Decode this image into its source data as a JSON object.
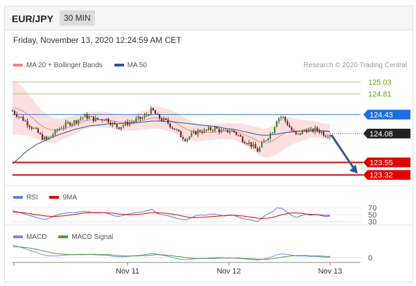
{
  "header": {
    "symbol": "EUR/JPY",
    "timeframe": "30 MIN"
  },
  "timestamp": "Friday, November 13, 2020 12:24:59 AM CET",
  "legend": {
    "bollinger": {
      "label": "MA 20 + Bollinger Bands",
      "color": "#f08080"
    },
    "ma50": {
      "label": "MA 50",
      "color": "#2f5597"
    }
  },
  "copyright": "Research © 2020 Trading Central",
  "rsi_panel": {
    "rsi": {
      "label": "RSI",
      "color": "#5a7fd6"
    },
    "ma9": {
      "label": "9MA",
      "color": "#e00000"
    },
    "levels": [
      "70",
      "50",
      "30"
    ]
  },
  "macd_panel": {
    "macd": {
      "label": "MACD",
      "color": "#6b8fe0"
    },
    "signal": {
      "label": "MACD Signal",
      "color": "#4aa02c"
    },
    "zero_label": "0"
  },
  "x_axis": [
    "Nov 11",
    "Nov 12",
    "Nov 13"
  ],
  "chart_data": {
    "type": "candlestick",
    "ylim": [
      123.2,
      125.2
    ],
    "resistance_levels": [
      {
        "value": 125.03,
        "label": "125.03",
        "color": "#8db84a"
      },
      {
        "value": 124.81,
        "label": "124.81",
        "color": "#8db84a"
      },
      {
        "value": 124.43,
        "label": "124.43",
        "color": "#1f6fe0"
      }
    ],
    "current_price": {
      "value": 124.08,
      "label": "124.08",
      "color": "#222222"
    },
    "support_levels": [
      {
        "value": 123.55,
        "label": "123.55",
        "color": "#e00000"
      },
      {
        "value": 123.32,
        "label": "123.32",
        "color": "#e00000"
      }
    ],
    "close_path": [
      124.5,
      124.42,
      124.36,
      124.28,
      124.2,
      124.12,
      124.02,
      123.96,
      124.04,
      124.12,
      124.2,
      124.24,
      124.28,
      124.3,
      124.36,
      124.4,
      124.38,
      124.34,
      124.34,
      124.36,
      124.32,
      124.24,
      124.2,
      124.24,
      124.28,
      124.3,
      124.34,
      124.36,
      124.44,
      124.52,
      124.4,
      124.34,
      124.3,
      124.22,
      124.14,
      124.04,
      123.98,
      124.04,
      124.1,
      124.14,
      124.12,
      124.16,
      124.18,
      124.14,
      124.1,
      124.14,
      124.12,
      124.04,
      123.96,
      123.92,
      123.84,
      123.76,
      123.9,
      124.02,
      124.12,
      124.36,
      124.4,
      124.28,
      124.14,
      124.04,
      124.1,
      124.16,
      124.12,
      124.16,
      124.12,
      124.06,
      124.08
    ],
    "ma20": [
      124.56,
      124.54,
      124.5,
      124.45,
      124.38,
      124.3,
      124.23,
      124.18,
      124.15,
      124.14,
      124.15,
      124.18,
      124.21,
      124.25,
      124.28,
      124.31,
      124.33,
      124.34,
      124.34,
      124.34,
      124.33,
      124.31,
      124.29,
      124.28,
      124.28,
      124.29,
      124.3,
      124.32,
      124.34,
      124.37,
      124.37,
      124.36,
      124.34,
      124.31,
      124.27,
      124.22,
      124.17,
      124.13,
      124.11,
      124.1,
      124.1,
      124.1,
      124.11,
      124.12,
      124.12,
      124.12,
      124.12,
      124.1,
      124.07,
      124.03,
      123.99,
      123.94,
      123.91,
      123.91,
      123.94,
      124.0,
      124.06,
      124.1,
      124.12,
      124.13,
      124.14,
      124.15,
      124.16,
      124.16,
      124.14,
      124.12,
      124.11
    ],
    "bb_width": [
      0.5,
      0.48,
      0.45,
      0.4,
      0.36,
      0.32,
      0.28,
      0.26,
      0.24,
      0.22,
      0.2,
      0.19,
      0.18,
      0.17,
      0.16,
      0.15,
      0.15,
      0.14,
      0.14,
      0.14,
      0.14,
      0.14,
      0.15,
      0.15,
      0.15,
      0.15,
      0.16,
      0.17,
      0.18,
      0.2,
      0.2,
      0.2,
      0.2,
      0.2,
      0.2,
      0.2,
      0.19,
      0.18,
      0.17,
      0.16,
      0.15,
      0.14,
      0.14,
      0.14,
      0.14,
      0.15,
      0.15,
      0.17,
      0.19,
      0.21,
      0.23,
      0.25,
      0.26,
      0.27,
      0.28,
      0.3,
      0.3,
      0.28,
      0.25,
      0.22,
      0.2,
      0.18,
      0.16,
      0.15,
      0.14,
      0.14,
      0.14
    ],
    "ma50": [
      123.52,
      123.6,
      123.68,
      123.76,
      123.82,
      123.88,
      123.92,
      123.96,
      124.0,
      124.04,
      124.07,
      124.1,
      124.13,
      124.16,
      124.18,
      124.2,
      124.22,
      124.23,
      124.24,
      124.25,
      124.26,
      124.26,
      124.26,
      124.27,
      124.27,
      124.28,
      124.28,
      124.29,
      124.3,
      124.31,
      124.31,
      124.31,
      124.3,
      124.3,
      124.29,
      124.28,
      124.27,
      124.26,
      124.25,
      124.24,
      124.23,
      124.22,
      124.21,
      124.2,
      124.18,
      124.17,
      124.16,
      124.14,
      124.12,
      124.1,
      124.08,
      124.06,
      124.05,
      124.05,
      124.06,
      124.07,
      124.09,
      124.1,
      124.11,
      124.12,
      124.12,
      124.13,
      124.13,
      124.13,
      124.13,
      124.13,
      124.12
    ],
    "forecast_arrow": {
      "from": 124.08,
      "to": 123.32
    },
    "rsi": [
      62,
      58,
      54,
      50,
      46,
      42,
      38,
      36,
      42,
      48,
      52,
      54,
      56,
      56,
      58,
      60,
      58,
      55,
      55,
      56,
      53,
      47,
      45,
      48,
      52,
      54,
      57,
      58,
      62,
      66,
      54,
      50,
      48,
      44,
      40,
      37,
      35,
      40,
      46,
      49,
      48,
      51,
      52,
      49,
      46,
      49,
      48,
      43,
      38,
      36,
      33,
      30,
      42,
      52,
      58,
      70,
      68,
      58,
      48,
      42,
      47,
      52,
      48,
      51,
      48,
      44,
      46
    ],
    "rsi_ma9": [
      58,
      57,
      56,
      54,
      52,
      50,
      48,
      46,
      45,
      45,
      46,
      47,
      49,
      51,
      53,
      55,
      56,
      56,
      56,
      56,
      55,
      54,
      52,
      51,
      50,
      50,
      51,
      52,
      54,
      56,
      56,
      55,
      54,
      52,
      50,
      47,
      44,
      42,
      41,
      42,
      43,
      44,
      45,
      46,
      47,
      48,
      48,
      47,
      46,
      44,
      42,
      40,
      39,
      40,
      42,
      46,
      50,
      53,
      55,
      55,
      54,
      52,
      51,
      50,
      49,
      48,
      48
    ],
    "macd": [
      0.3,
      0.27,
      0.24,
      0.2,
      0.16,
      0.12,
      0.08,
      0.05,
      0.04,
      0.04,
      0.05,
      0.06,
      0.07,
      0.07,
      0.08,
      0.08,
      0.08,
      0.07,
      0.06,
      0.06,
      0.05,
      0.03,
      0.02,
      0.02,
      0.03,
      0.04,
      0.05,
      0.06,
      0.08,
      0.1,
      0.08,
      0.06,
      0.04,
      0.01,
      -0.02,
      -0.04,
      -0.05,
      -0.04,
      -0.03,
      -0.02,
      -0.02,
      -0.01,
      0.0,
      0.0,
      -0.01,
      -0.01,
      -0.01,
      -0.02,
      -0.03,
      -0.04,
      -0.05,
      -0.06,
      -0.04,
      -0.01,
      0.02,
      0.07,
      0.09,
      0.08,
      0.06,
      0.04,
      0.04,
      0.04,
      0.03,
      0.03,
      0.02,
      0.01,
      0.01
    ],
    "macd_signal": [
      0.26,
      0.26,
      0.25,
      0.24,
      0.22,
      0.2,
      0.17,
      0.15,
      0.12,
      0.1,
      0.09,
      0.08,
      0.07,
      0.07,
      0.07,
      0.07,
      0.08,
      0.08,
      0.07,
      0.07,
      0.07,
      0.06,
      0.05,
      0.04,
      0.04,
      0.04,
      0.04,
      0.05,
      0.05,
      0.06,
      0.07,
      0.07,
      0.06,
      0.05,
      0.03,
      0.02,
      0.0,
      -0.01,
      -0.02,
      -0.02,
      -0.02,
      -0.02,
      -0.02,
      -0.01,
      -0.01,
      -0.01,
      -0.01,
      -0.01,
      -0.02,
      -0.02,
      -0.03,
      -0.04,
      -0.04,
      -0.04,
      -0.03,
      -0.01,
      0.01,
      0.03,
      0.04,
      0.05,
      0.05,
      0.05,
      0.04,
      0.04,
      0.04,
      0.03,
      0.03
    ]
  }
}
